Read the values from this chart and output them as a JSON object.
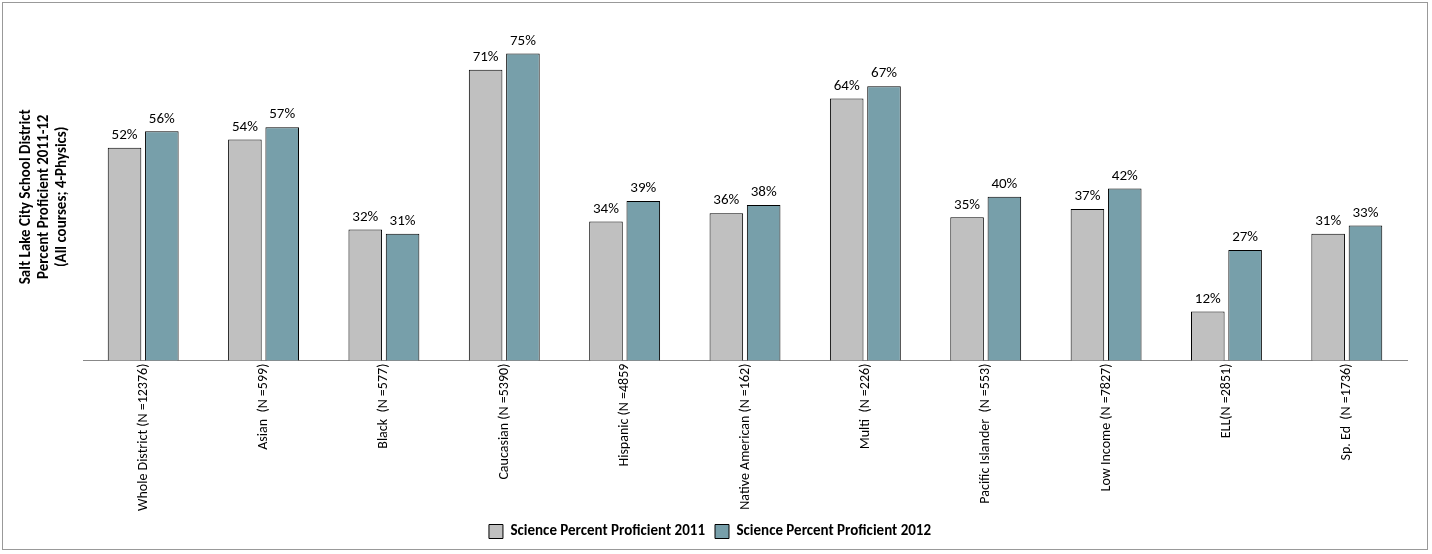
{
  "chart_data": {
    "type": "bar",
    "ylabel": "Salt Lake City School District\nPercent Proficient 2011-12\n(All courses; 4-Physics)",
    "categories": [
      "Whole District (N =12376)",
      "Asian  (N =599)",
      "Black  (N =577)",
      "Caucasian (N =5390)",
      "Hispanic (N =4859",
      "Native American (N =162)",
      "Multi  (N =226)",
      "Pacific Islander  (N =553)",
      "Low Income (N =7827)",
      "ELL(N =2851)",
      "Sp. Ed  (N =1736)"
    ],
    "series": [
      {
        "name": "Science Percent Proficient 2011",
        "color": "#c0c0c0",
        "values": [
          52,
          54,
          32,
          71,
          34,
          36,
          64,
          35,
          37,
          12,
          31
        ],
        "value_labels": [
          "52%",
          "54%",
          "32%",
          "71%",
          "34%",
          "36%",
          "64%",
          "35%",
          "37%",
          "12%",
          "31%"
        ]
      },
      {
        "name": "Science Percent Proficient 2012",
        "color": "#779faa",
        "values": [
          56,
          57,
          31,
          75,
          39,
          38,
          67,
          40,
          42,
          27,
          33
        ],
        "value_labels": [
          "56%",
          "57%",
          "31%",
          "75%",
          "39%",
          "38%",
          "67%",
          "40%",
          "42%",
          "27%",
          "33%"
        ]
      }
    ],
    "legend": "bottom",
    "tick_labels": "x",
    "grid": false
  }
}
